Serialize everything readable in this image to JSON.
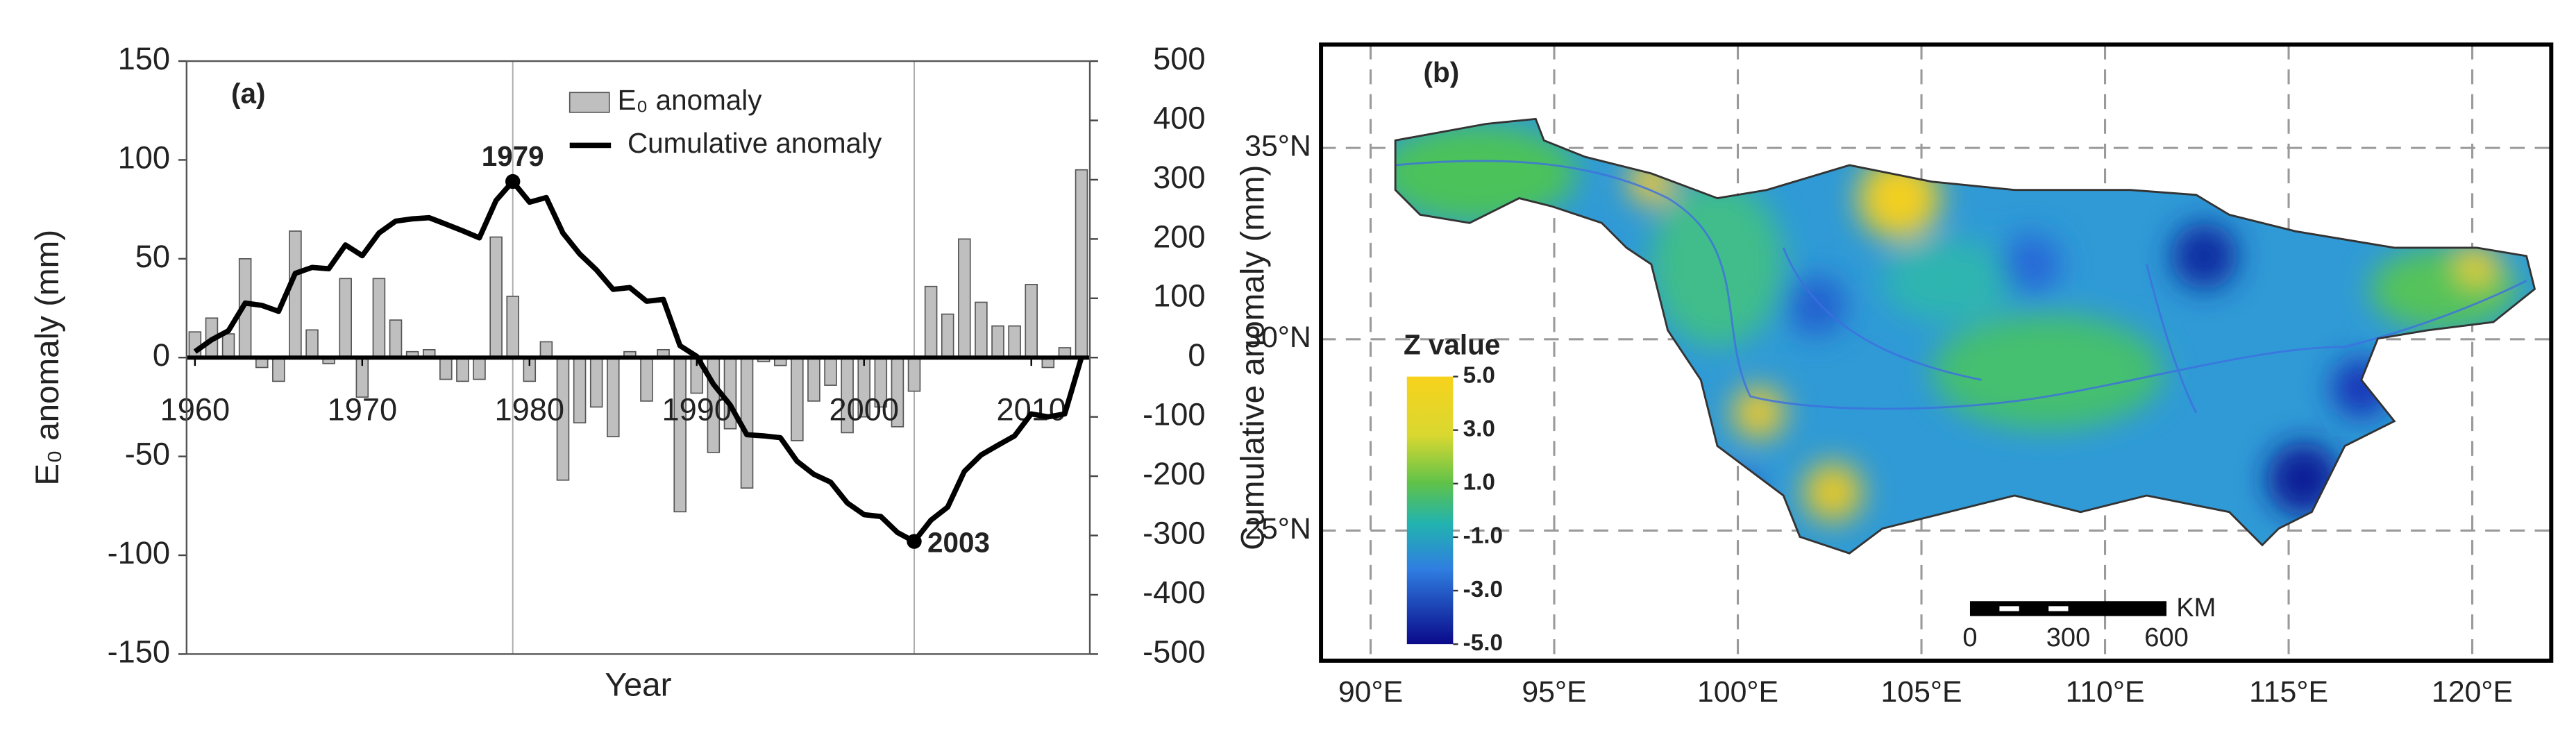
{
  "chart_data": [
    {
      "type": "bar",
      "panel_label": "(a)",
      "x_label": "Year",
      "y_label": "E₀ anomaly (mm)",
      "y2_label": "Cumulative anomaly (mm)",
      "x": [
        1960,
        1961,
        1962,
        1963,
        1964,
        1965,
        1966,
        1967,
        1968,
        1969,
        1970,
        1971,
        1972,
        1973,
        1974,
        1975,
        1976,
        1977,
        1978,
        1979,
        1980,
        1981,
        1982,
        1983,
        1984,
        1985,
        1986,
        1987,
        1988,
        1989,
        1990,
        1991,
        1992,
        1993,
        1994,
        1995,
        1996,
        1997,
        1998,
        1999,
        2000,
        2001,
        2002,
        2003,
        2004,
        2005,
        2006,
        2007,
        2008,
        2009,
        2010,
        2011,
        2012,
        2013
      ],
      "series": [
        {
          "name": "E₀ anomaly",
          "color": "#bfbfbf",
          "values": [
            13,
            20,
            12,
            50,
            -5,
            -12,
            64,
            14,
            -3,
            40,
            -20,
            40,
            19,
            3,
            4,
            -11,
            -12,
            -11,
            61,
            31,
            -12,
            8,
            -62,
            -33,
            -25,
            -40,
            3,
            -22,
            4,
            -78,
            -18,
            -48,
            -36,
            -66,
            -2,
            -4,
            -42,
            -22,
            -14,
            -38,
            -30,
            -25,
            -35,
            -17,
            36,
            22,
            60,
            28,
            16,
            16,
            37,
            -5,
            5,
            95
          ]
        },
        {
          "name": "Cumulative anomaly",
          "color": "#000000",
          "axis": "y2",
          "values": [
            10,
            30,
            45,
            92,
            88,
            78,
            142,
            152,
            150,
            190,
            172,
            210,
            230,
            234,
            236,
            225,
            214,
            202,
            265,
            297,
            262,
            270,
            210,
            175,
            148,
            115,
            118,
            95,
            98,
            20,
            2,
            -45,
            -80,
            -130,
            -132,
            -135,
            -175,
            -197,
            -210,
            -245,
            -265,
            -268,
            -295,
            -310,
            -274,
            -252,
            -192,
            -164,
            -148,
            -132,
            -95,
            -100,
            -95,
            0
          ]
        }
      ],
      "annotations": [
        "1979",
        "2003"
      ],
      "xlim": [
        1959.5,
        2013.5
      ],
      "xticks": [
        1960,
        1970,
        1980,
        1990,
        2000,
        2010
      ],
      "ylim": [
        -150,
        150
      ],
      "yticks": [
        -150,
        -100,
        -50,
        0,
        50,
        100,
        150
      ],
      "y2lim": [
        -500,
        500
      ],
      "y2ticks": [
        -500,
        -400,
        -300,
        -200,
        -100,
        0,
        100,
        200,
        300,
        400,
        500
      ]
    },
    {
      "type": "map",
      "panel_label": "(b)",
      "xlim": [
        88.65,
        122.15
      ],
      "xticks": [
        {
          "value": 90,
          "label": "90°E"
        },
        {
          "value": 95,
          "label": "95°E"
        },
        {
          "value": 100,
          "label": "100°E"
        },
        {
          "value": 105,
          "label": "105°E"
        },
        {
          "value": 110,
          "label": "110°E"
        },
        {
          "value": 115,
          "label": "115°E"
        },
        {
          "value": 120,
          "label": "120°E"
        }
      ],
      "ylim": [
        21.6,
        37.7
      ],
      "yticks": [
        {
          "value": 25,
          "label": "25°N"
        },
        {
          "value": 30,
          "label": "30°N"
        },
        {
          "value": 35,
          "label": "35°N"
        }
      ],
      "grid": true,
      "colorbar_title": "Z value",
      "clim": [
        -5,
        5
      ],
      "colorbar_ticks": [
        {
          "value": 5,
          "label": "5.0"
        },
        {
          "value": 3,
          "label": "3.0"
        },
        {
          "value": 1,
          "label": "1.0"
        },
        {
          "value": -1,
          "label": "-1.0"
        },
        {
          "value": -3,
          "label": "-3.0"
        },
        {
          "value": -5,
          "label": "-5.0"
        }
      ],
      "scale_unit": "KM",
      "scale_ticks": [
        0,
        300,
        600
      ]
    }
  ]
}
